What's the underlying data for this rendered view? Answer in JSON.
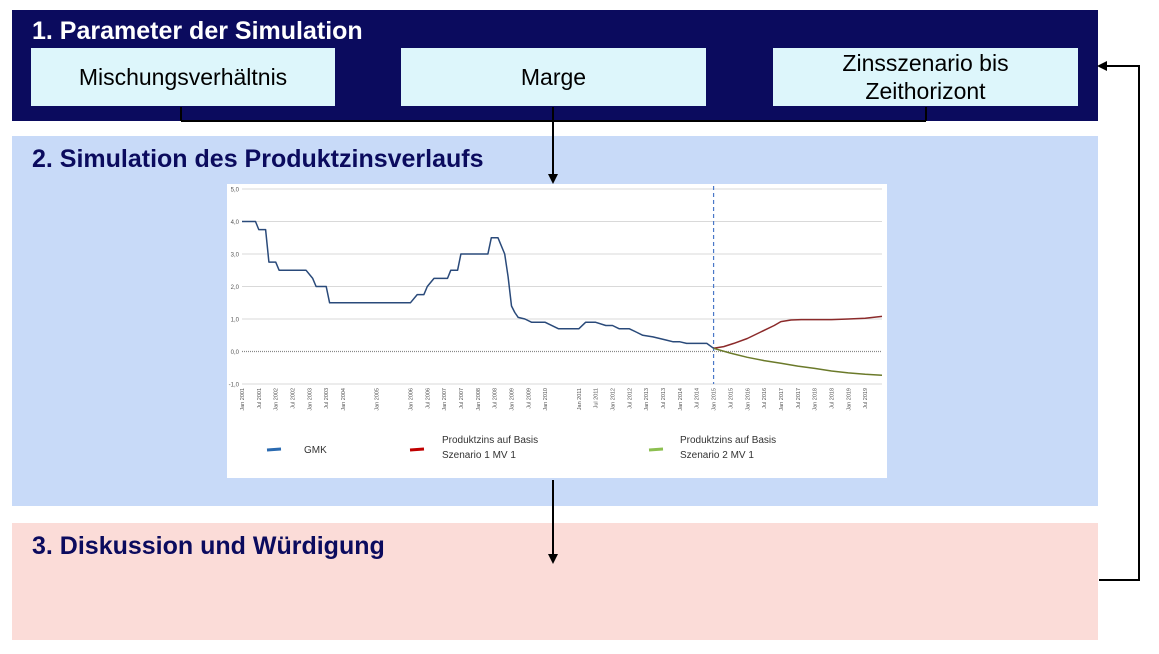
{
  "sections": {
    "parameters": {
      "title": "1. Parameter der Simulation",
      "boxes": [
        "Mischungsverhältnis",
        "Marge",
        "Zinsszenario bis Zeithorizont"
      ]
    },
    "simulation": {
      "title": "2. Simulation des Produktzinsverlaufs"
    },
    "discussion": {
      "title": "3. Diskussion und Würdigung"
    }
  },
  "colors": {
    "band_parameters": "#0b0b5e",
    "band_simulation": "#c8daf8",
    "band_discussion": "#fbdcd8",
    "param_box": "#ddf6fb",
    "series_gmk": "#2a4a7a",
    "series_s1": "#8b2a2a",
    "series_s2": "#6b7a2a",
    "forecast_divider": "#4a78c8"
  },
  "chart_data": {
    "type": "line",
    "ylim": [
      -1.0,
      5.0
    ],
    "yticks": [
      "5,0",
      "4,0",
      "3,0",
      "2,0",
      "1,0",
      "0,0",
      "-1,0"
    ],
    "ytick_values": [
      5,
      4,
      3,
      2,
      1,
      0,
      -1
    ],
    "xticks": [
      "Jan 2001",
      "Jul 2001",
      "Jan 2002",
      "Jul 2002",
      "Jan 2003",
      "Jul 2003",
      "Jan 2004",
      "Jan 2005",
      "Jan 2006",
      "Jul 2006",
      "Jan 2007",
      "Jul 2007",
      "Jan 2008",
      "Jul 2008",
      "Jan 2009",
      "Jul 2009",
      "Jan 2010",
      "Jan 2011",
      "Jul 2011",
      "Jan 2012",
      "Jul 2012",
      "Jan 2013",
      "Jul 2013",
      "Jan 2014",
      "Jul 2014",
      "Jan 2015",
      "Jul 2015",
      "Jan 2016",
      "Jul 2016",
      "Jan 2017",
      "Jul 2017",
      "Jan 2018",
      "Jul 2018",
      "Jan 2019",
      "Jul 2019"
    ],
    "xtick_times": [
      2001.0,
      2001.5,
      2002.0,
      2002.5,
      2003.0,
      2003.5,
      2004.0,
      2005.0,
      2006.0,
      2006.5,
      2007.0,
      2007.5,
      2008.0,
      2008.5,
      2009.0,
      2009.5,
      2010.0,
      2011.0,
      2011.5,
      2012.0,
      2012.5,
      2013.0,
      2013.5,
      2014.0,
      2014.5,
      2015.0,
      2015.5,
      2016.0,
      2016.5,
      2017.0,
      2017.5,
      2018.0,
      2018.5,
      2019.0,
      2019.5
    ],
    "xlim": [
      2001.0,
      2020.0
    ],
    "forecast_start": 2015.0,
    "series": [
      {
        "name": "GMK",
        "x": [
          2001.0,
          2001.4,
          2001.5,
          2001.7,
          2001.8,
          2002.0,
          2002.1,
          2002.9,
          2003.1,
          2003.2,
          2003.5,
          2003.6,
          2006.0,
          2006.2,
          2006.4,
          2006.5,
          2006.7,
          2007.1,
          2007.2,
          2007.4,
          2007.5,
          2008.3,
          2008.4,
          2008.6,
          2008.8,
          2008.9,
          2009.0,
          2009.1,
          2009.2,
          2009.4,
          2009.6,
          2009.9,
          2010.0,
          2010.4,
          2010.5,
          2011.0,
          2011.2,
          2011.5,
          2011.8,
          2012.0,
          2012.2,
          2012.5,
          2012.7,
          2012.9,
          2013.2,
          2013.4,
          2013.6,
          2013.8,
          2014.0,
          2014.2,
          2014.5,
          2014.8,
          2015.0
        ],
        "y": [
          4.0,
          4.0,
          3.75,
          3.75,
          2.75,
          2.75,
          2.5,
          2.5,
          2.25,
          2.0,
          2.0,
          1.5,
          1.5,
          1.75,
          1.75,
          2.0,
          2.25,
          2.25,
          2.5,
          2.5,
          3.0,
          3.0,
          3.5,
          3.5,
          3.0,
          2.3,
          1.4,
          1.2,
          1.05,
          1.0,
          0.9,
          0.9,
          0.9,
          0.7,
          0.7,
          0.7,
          0.9,
          0.9,
          0.8,
          0.8,
          0.7,
          0.7,
          0.6,
          0.5,
          0.45,
          0.4,
          0.35,
          0.3,
          0.3,
          0.25,
          0.25,
          0.25,
          0.1
        ]
      },
      {
        "name": "Produktzins auf Basis Szenario 1 MV 1",
        "x": [
          2015.0,
          2015.3,
          2015.6,
          2016.0,
          2016.4,
          2016.8,
          2017.0,
          2017.3,
          2017.6,
          2018.0,
          2018.5,
          2019.0,
          2019.5,
          2020.0
        ],
        "y": [
          0.1,
          0.15,
          0.25,
          0.4,
          0.6,
          0.8,
          0.92,
          0.97,
          0.98,
          0.98,
          0.98,
          1.0,
          1.02,
          1.08
        ]
      },
      {
        "name": "Produktzins auf Basis Szenario 2 MV 1",
        "x": [
          2015.0,
          2015.5,
          2016.0,
          2016.5,
          2017.0,
          2017.5,
          2018.0,
          2018.5,
          2019.0,
          2019.5,
          2020.0
        ],
        "y": [
          0.1,
          -0.05,
          -0.18,
          -0.28,
          -0.36,
          -0.45,
          -0.52,
          -0.6,
          -0.66,
          -0.7,
          -0.73
        ]
      }
    ],
    "legend": [
      {
        "label_lines": [
          "GMK"
        ],
        "color": "#2a6ab0"
      },
      {
        "label_lines": [
          "Produktzins auf Basis",
          "Szenario 1 MV 1"
        ],
        "color": "#c00000"
      },
      {
        "label_lines": [
          "Produktzins auf Basis",
          "Szenario 2 MV 1"
        ],
        "color": "#8cbf50"
      }
    ]
  }
}
